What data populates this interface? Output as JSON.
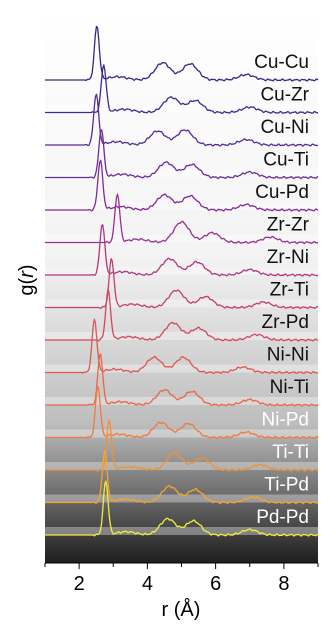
{
  "chart_data": {
    "type": "line",
    "xlabel": "r (Å)",
    "ylabel": "g(r)",
    "ylabel_base": "g(",
    "ylabel_var": "r",
    "ylabel_close": ")",
    "xlim": [
      1,
      9
    ],
    "xticks": [
      2,
      4,
      6,
      8
    ],
    "xtick_labels": [
      "2",
      "4",
      "6",
      "8"
    ],
    "y_ticks_shown": false,
    "stacked_offset": true,
    "background": "gradient white (top) to dark grey (bottom)",
    "series": [
      {
        "name": "Cu-Cu",
        "color": "#2c2a8a",
        "label_color": "#111111",
        "peaks": [
          [
            2.52,
            1.0
          ],
          [
            4.45,
            0.32
          ],
          [
            5.25,
            0.3
          ],
          [
            6.9,
            0.1
          ]
        ]
      },
      {
        "name": "Cu-Zr",
        "color": "#3c2b90",
        "label_color": "#111111",
        "peaks": [
          [
            2.72,
            0.88
          ],
          [
            4.7,
            0.28
          ],
          [
            5.4,
            0.22
          ],
          [
            7.0,
            0.1
          ]
        ]
      },
      {
        "name": "Cu-Ni",
        "color": "#522c94",
        "label_color": "#111111",
        "peaks": [
          [
            2.5,
            0.95
          ],
          [
            4.3,
            0.26
          ],
          [
            5.1,
            0.28
          ],
          [
            6.9,
            0.1
          ]
        ]
      },
      {
        "name": "Cu-Ti",
        "color": "#6b2c96",
        "label_color": "#111111",
        "peaks": [
          [
            2.65,
            0.9
          ],
          [
            4.55,
            0.28
          ],
          [
            5.3,
            0.24
          ],
          [
            7.0,
            0.1
          ]
        ]
      },
      {
        "name": "Cu-Pd",
        "color": "#85299a",
        "label_color": "#111111",
        "peaks": [
          [
            2.62,
            0.92
          ],
          [
            4.5,
            0.28
          ],
          [
            5.25,
            0.26
          ],
          [
            6.9,
            0.1
          ]
        ]
      },
      {
        "name": "Zr-Zr",
        "color": "#9c2f90",
        "label_color": "#111111",
        "peaks": [
          [
            3.12,
            0.9
          ],
          [
            5.0,
            0.38
          ],
          [
            5.9,
            0.18
          ],
          [
            7.6,
            0.1
          ]
        ]
      },
      {
        "name": "Zr-Ni",
        "color": "#b2367f",
        "label_color": "#111111",
        "peaks": [
          [
            2.68,
            0.95
          ],
          [
            4.65,
            0.3
          ],
          [
            5.45,
            0.24
          ],
          [
            7.0,
            0.1
          ]
        ]
      },
      {
        "name": "Zr-Ti",
        "color": "#c43e70",
        "label_color": "#111111",
        "peaks": [
          [
            2.95,
            0.9
          ],
          [
            4.85,
            0.32
          ],
          [
            5.7,
            0.2
          ],
          [
            7.4,
            0.1
          ]
        ]
      },
      {
        "name": "Zr-Pd",
        "color": "#d2475f",
        "label_color": "#111111",
        "peaks": [
          [
            2.85,
            0.92
          ],
          [
            4.75,
            0.32
          ],
          [
            5.5,
            0.22
          ],
          [
            7.2,
            0.1
          ]
        ]
      },
      {
        "name": "Ni-Ni",
        "color": "#de5650",
        "label_color": "#111111",
        "peaks": [
          [
            2.45,
            0.98
          ],
          [
            4.2,
            0.28
          ],
          [
            5.05,
            0.28
          ],
          [
            6.8,
            0.1
          ]
        ]
      },
      {
        "name": "Ni-Ti",
        "color": "#e96645",
        "label_color": "#111111",
        "peaks": [
          [
            2.62,
            0.95
          ],
          [
            4.5,
            0.28
          ],
          [
            5.3,
            0.25
          ],
          [
            7.0,
            0.1
          ]
        ]
      },
      {
        "name": "Ni-Pd",
        "color": "#f0793b",
        "label_color": "#ffffff",
        "peaks": [
          [
            2.55,
            0.95
          ],
          [
            4.4,
            0.28
          ],
          [
            5.2,
            0.26
          ],
          [
            6.9,
            0.1
          ]
        ]
      },
      {
        "name": "Ti-Ti",
        "color": "#f58e34",
        "label_color": "#ffffff",
        "peaks": [
          [
            2.88,
            0.92
          ],
          [
            4.8,
            0.32
          ],
          [
            5.6,
            0.22
          ],
          [
            7.3,
            0.1
          ]
        ]
      },
      {
        "name": "Ti-Pd",
        "color": "#f7a52c",
        "label_color": "#ffffff",
        "peaks": [
          [
            2.75,
            0.95
          ],
          [
            4.65,
            0.3
          ],
          [
            5.4,
            0.24
          ],
          [
            7.1,
            0.1
          ]
        ]
      },
      {
        "name": "Pd-Pd",
        "color": "#f2ee3a",
        "label_color": "#ffffff",
        "peaks": [
          [
            2.78,
            1.0
          ],
          [
            4.6,
            0.3
          ],
          [
            5.35,
            0.26
          ],
          [
            7.0,
            0.1
          ]
        ]
      }
    ]
  }
}
